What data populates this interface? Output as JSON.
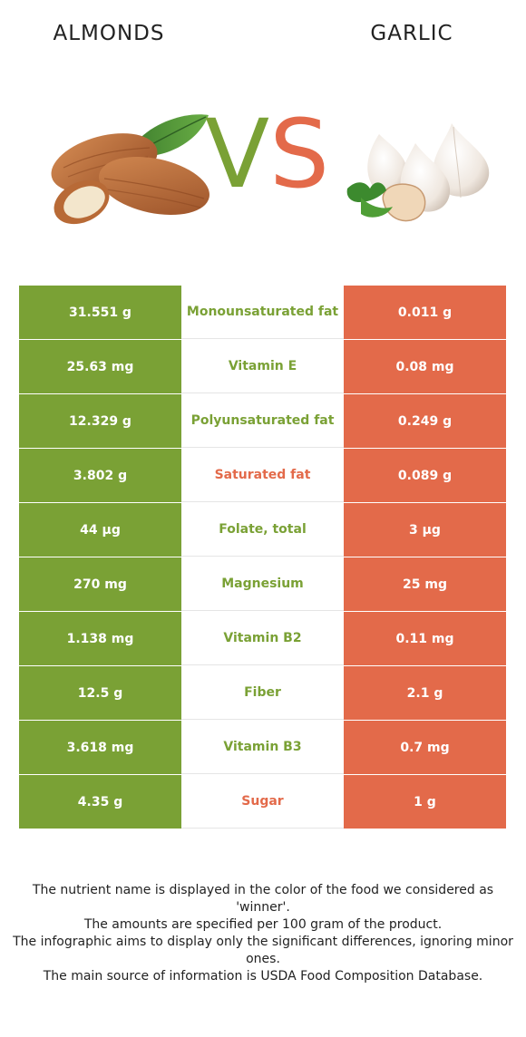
{
  "header": {
    "left_food": "ALMONDS",
    "right_food": "GARLIC",
    "vs_v": "V",
    "vs_s": "S"
  },
  "colors": {
    "left": "#7aa135",
    "right": "#e36a4a"
  },
  "rows": [
    {
      "left": "31.551 g",
      "nutrient": "Monounsaturated fat",
      "right": "0.011 g",
      "winner": "left"
    },
    {
      "left": "25.63 mg",
      "nutrient": "Vitamin E",
      "right": "0.08 mg",
      "winner": "left"
    },
    {
      "left": "12.329 g",
      "nutrient": "Polyunsaturated fat",
      "right": "0.249 g",
      "winner": "left"
    },
    {
      "left": "3.802 g",
      "nutrient": "Saturated fat",
      "right": "0.089 g",
      "winner": "right"
    },
    {
      "left": "44 µg",
      "nutrient": "Folate, total",
      "right": "3 µg",
      "winner": "left"
    },
    {
      "left": "270 mg",
      "nutrient": "Magnesium",
      "right": "25 mg",
      "winner": "left"
    },
    {
      "left": "1.138 mg",
      "nutrient": "Vitamin B2",
      "right": "0.11 mg",
      "winner": "left"
    },
    {
      "left": "12.5 g",
      "nutrient": "Fiber",
      "right": "2.1 g",
      "winner": "left"
    },
    {
      "left": "3.618 mg",
      "nutrient": "Vitamin B3",
      "right": "0.7 mg",
      "winner": "left"
    },
    {
      "left": "4.35 g",
      "nutrient": "Sugar",
      "right": "1 g",
      "winner": "right"
    }
  ],
  "footer": {
    "line1": "The nutrient name is displayed in the color of the food we considered as 'winner'.",
    "line2": "The amounts are specified per 100 gram of the product.",
    "line3": "The infographic aims to display only the significant differences, ignoring minor ones.",
    "line4": "The main source of information is USDA Food Composition Database."
  }
}
